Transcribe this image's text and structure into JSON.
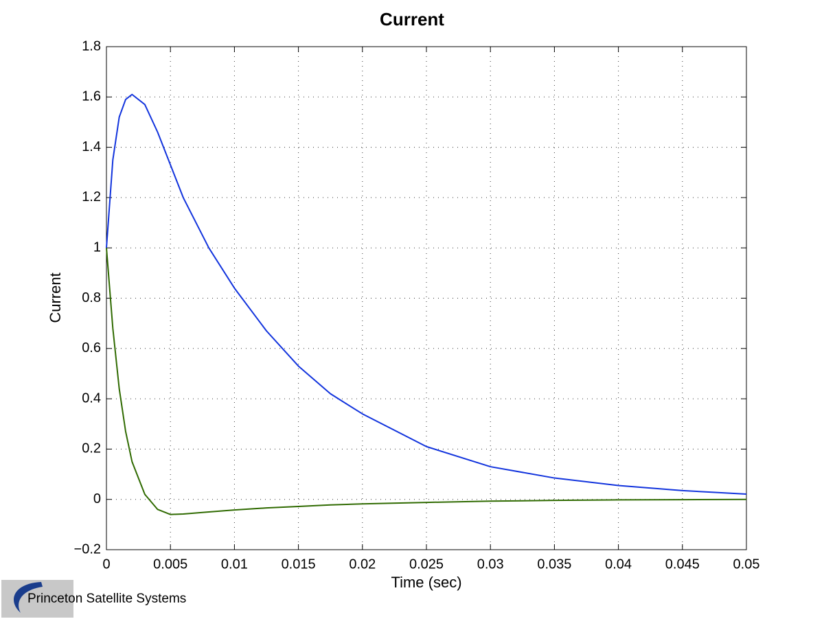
{
  "chart_data": {
    "type": "line",
    "title": "Current",
    "xlabel": "Time (sec)",
    "ylabel": "Current",
    "x": [
      0,
      0.0005,
      0.001,
      0.0015,
      0.002,
      0.003,
      0.004,
      0.005,
      0.006,
      0.008,
      0.01,
      0.0125,
      0.015,
      0.0175,
      0.02,
      0.025,
      0.03,
      0.035,
      0.04,
      0.045,
      0.05
    ],
    "series": [
      {
        "color": "#1133dd",
        "values": [
          1,
          1.35,
          1.52,
          1.59,
          1.61,
          1.57,
          1.46,
          1.33,
          1.2,
          1.0,
          0.84,
          0.67,
          0.53,
          0.42,
          0.34,
          0.21,
          0.13,
          0.085,
          0.055,
          0.035,
          0.021
        ]
      },
      {
        "color": "#2f6a00",
        "values": [
          1,
          0.68,
          0.44,
          0.27,
          0.15,
          0.02,
          -0.04,
          -0.06,
          -0.058,
          -0.05,
          -0.042,
          -0.034,
          -0.028,
          -0.022,
          -0.018,
          -0.012,
          -0.007,
          -0.004,
          -0.002,
          -0.001,
          0
        ]
      }
    ],
    "xlim": [
      0,
      0.05
    ],
    "xticks": [
      0,
      0.005,
      0.01,
      0.015,
      0.02,
      0.025,
      0.03,
      0.035,
      0.04,
      0.045,
      0.05
    ],
    "ylim": [
      -0.2,
      1.8
    ],
    "yticks": [
      {
        "value": -0.2,
        "label": "−0.2"
      },
      0,
      0.2,
      0.4,
      0.6,
      0.8,
      1,
      1.2,
      1.4,
      1.6,
      1.8
    ],
    "grid": true
  },
  "footer": {
    "text": "Princeton Satellite Systems"
  }
}
